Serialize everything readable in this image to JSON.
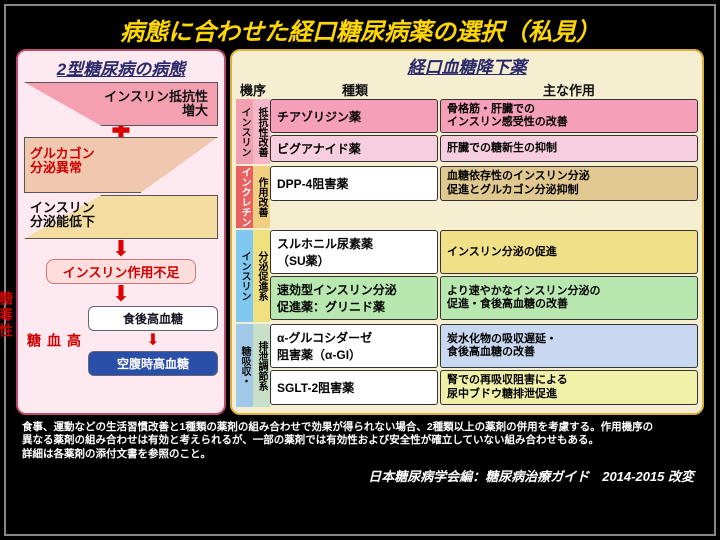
{
  "title": "病態に合わせた経口糖尿病薬の選択（私見）",
  "leftTitle": "2型糖尿病の病態",
  "rightTitle": "経口血糖降下薬",
  "tri1": "インスリン抵抗性\n増大",
  "tri2": "グルカゴン\n分泌異常",
  "tri3": "インスリン\n分泌能低下",
  "badge": "インスリン作用不足",
  "hyper": "高\n血\n糖",
  "pill1": "食後高血糖",
  "pill2": "空腹時高血糖",
  "toxic": "糖毒性",
  "hdrs": [
    "機序",
    "種類",
    "主な作用"
  ],
  "mech1a": "抵抗性改善",
  "mech1b": "インスリン",
  "mech2a": "作用改善",
  "mech2b": "インクレチン",
  "mech3a": "分泌促進系",
  "mech3b": "インスリン",
  "mech4a": "排泄調節系",
  "mech4b": "糖吸収・",
  "rows": [
    {
      "drug": "チアゾリジン薬",
      "eff": "骨格筋・肝臓での\nインスリン感受性の改善",
      "dc": "#f5a0b8",
      "ec": "#f5a0b8"
    },
    {
      "drug": "ビグアナイド薬",
      "eff": "肝臓での糖新生の抑制",
      "dc": "#f7cde0",
      "ec": "#f7cde0"
    },
    {
      "drug": "DPP-4阻害薬",
      "eff": "血糖依存性のインスリン分泌\n促進とグルカゴン分泌抑制",
      "dc": "#fff",
      "ec": "#e0c890"
    },
    {
      "drug": "スルホニル尿素薬\n（SU薬）",
      "eff": "インスリン分泌の促進",
      "dc": "#fff",
      "ec": "#f0e088"
    },
    {
      "drug": "速効型インスリン分泌\n促進薬：グリニド薬",
      "eff": "より速やかなインスリン分泌の\n促進・食後高血糖の改善",
      "dc": "#b8e8b0",
      "ec": "#b8e8b0"
    },
    {
      "drug": "α-グルコシダーゼ\n阻害薬（α-GI）",
      "eff": "炭水化物の吸収遅延・\n食後高血糖の改善",
      "dc": "#fff",
      "ec": "#c8d8f0"
    },
    {
      "drug": "SGLT-2阻害薬",
      "eff": "腎での再吸収阻害による\n尿中ブドウ糖排泄促進",
      "dc": "#fff",
      "ec": "#f0f0a8"
    }
  ],
  "footnote": "食事、運動などの生活習慣改善と1種類の薬剤の組み合わせで効果が得られない場合、2種類以上の薬剤の併用を考慮する。作用機序の\n異なる薬剤の組み合わせは有効と考えられるが、一部の薬剤では有効性および安全性が確立していない組み合わせもある。\n詳細は各薬剤の添付文書を参照のこと。",
  "credit": "日本糖尿病学会編：糖尿病治療ガイド　2014-2015 改変",
  "mechColors": {
    "m1": "#f5b8c8",
    "m1b": "#f0a0b0",
    "m2": "#f0d080",
    "m2b": "#e86060",
    "m3": "#f0e080",
    "m3b": "#80c8f0",
    "m4": "#c8e0c8",
    "m4b": "#a0c8e8"
  }
}
